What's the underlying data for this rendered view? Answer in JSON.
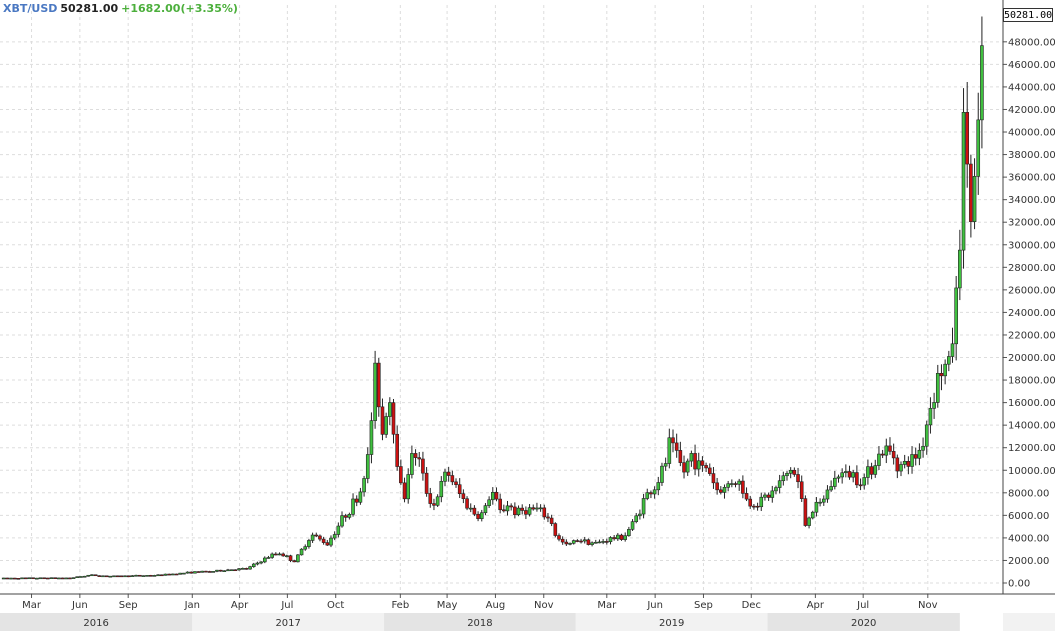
{
  "header": {
    "symbol": "XBT/USD",
    "price": "50281.00",
    "change": "+1682.00(+3.35%)"
  },
  "last_price_label": "50281.00",
  "colors": {
    "up": "#3fbf3f",
    "down": "#cc1111",
    "wick": "#222222",
    "grid": "#dddddd",
    "year_band_a": "#e4e4e4",
    "year_band_b": "#f2f2f2",
    "header_symbol": "#4a78c2",
    "header_change": "#4caf3c"
  },
  "chart_data": {
    "type": "candlestick",
    "title": "",
    "xlabel": "",
    "ylabel": "",
    "ylim": [
      0,
      51000
    ],
    "y_ticks": [
      "0.00",
      "2000.00",
      "4000.00",
      "6000.00",
      "8000.00",
      "10000.00",
      "12000.00",
      "14000.00",
      "16000.00",
      "18000.00",
      "20000.00",
      "22000.00",
      "24000.00",
      "26000.00",
      "28000.00",
      "30000.00",
      "32000.00",
      "34000.00",
      "36000.00",
      "38000.00",
      "40000.00",
      "42000.00",
      "44000.00",
      "46000.00",
      "48000.00"
    ],
    "x_range": [
      "2016-01-01",
      "2021-01-07"
    ],
    "month_ticks": [
      {
        "label": "Mar",
        "date": "2016-03-01"
      },
      {
        "label": "Jun",
        "date": "2016-06-01"
      },
      {
        "label": "Sep",
        "date": "2016-09-01"
      },
      {
        "label": "Jan",
        "date": "2017-01-01"
      },
      {
        "label": "Apr",
        "date": "2017-04-01"
      },
      {
        "label": "Jul",
        "date": "2017-07-01"
      },
      {
        "label": "Oct",
        "date": "2017-10-01"
      },
      {
        "label": "Feb",
        "date": "2018-02-01"
      },
      {
        "label": "May",
        "date": "2018-05-01"
      },
      {
        "label": "Aug",
        "date": "2018-08-01"
      },
      {
        "label": "Nov",
        "date": "2018-11-01"
      },
      {
        "label": "Mar",
        "date": "2019-03-01"
      },
      {
        "label": "Jun",
        "date": "2019-06-01"
      },
      {
        "label": "Sep",
        "date": "2019-09-01"
      },
      {
        "label": "Dec",
        "date": "2019-12-01"
      },
      {
        "label": "Apr",
        "date": "2020-04-01"
      },
      {
        "label": "Jul",
        "date": "2020-07-01"
      },
      {
        "label": "Nov",
        "date": "2020-11-01"
      }
    ],
    "years": [
      {
        "label": "2016",
        "start": "2016-01-01",
        "end": "2017-01-01"
      },
      {
        "label": "2017",
        "start": "2017-01-01",
        "end": "2018-01-01"
      },
      {
        "label": "2018",
        "start": "2018-01-01",
        "end": "2019-01-01"
      },
      {
        "label": "2019",
        "start": "2019-01-01",
        "end": "2020-01-01"
      },
      {
        "label": "2020",
        "start": "2020-01-01",
        "end": "2021-01-01"
      }
    ],
    "series": [
      {
        "type": "close_path",
        "points": [
          [
            "2016-01-01",
            430
          ],
          [
            "2016-05-15",
            450
          ],
          [
            "2016-06-20",
            700
          ],
          [
            "2016-08-01",
            600
          ],
          [
            "2016-11-01",
            700
          ],
          [
            "2017-01-01",
            950
          ],
          [
            "2017-02-15",
            1050
          ],
          [
            "2017-03-15",
            1200
          ],
          [
            "2017-04-15",
            1250
          ],
          [
            "2017-05-25",
            2300
          ],
          [
            "2017-06-15",
            2700
          ],
          [
            "2017-07-15",
            1900
          ],
          [
            "2017-08-15",
            4300
          ],
          [
            "2017-09-15",
            3500
          ],
          [
            "2017-10-15",
            5800
          ],
          [
            "2017-11-15",
            7800
          ],
          [
            "2017-12-01",
            11000
          ],
          [
            "2017-12-17",
            19300
          ],
          [
            "2017-12-28",
            13000
          ],
          [
            "2018-01-10",
            17000
          ],
          [
            "2018-01-25",
            11500
          ],
          [
            "2018-02-06",
            7000
          ],
          [
            "2018-02-20",
            11000
          ],
          [
            "2018-03-05",
            11500
          ],
          [
            "2018-03-20",
            8500
          ],
          [
            "2018-04-05",
            6800
          ],
          [
            "2018-04-25",
            9300
          ],
          [
            "2018-05-05",
            9700
          ],
          [
            "2018-05-20",
            8200
          ],
          [
            "2018-06-10",
            6800
          ],
          [
            "2018-06-28",
            5900
          ],
          [
            "2018-07-10",
            6300
          ],
          [
            "2018-07-25",
            8200
          ],
          [
            "2018-08-10",
            6300
          ],
          [
            "2018-08-25",
            7000
          ],
          [
            "2018-09-10",
            6200
          ],
          [
            "2018-09-25",
            6500
          ],
          [
            "2018-10-20",
            6500
          ],
          [
            "2018-11-15",
            5500
          ],
          [
            "2018-11-25",
            4000
          ],
          [
            "2018-12-15",
            3300
          ],
          [
            "2019-01-05",
            3900
          ],
          [
            "2019-02-08",
            3500
          ],
          [
            "2019-03-05",
            3900
          ],
          [
            "2019-04-02",
            4100
          ],
          [
            "2019-04-20",
            5300
          ],
          [
            "2019-05-15",
            7800
          ],
          [
            "2019-06-01",
            8500
          ],
          [
            "2019-06-20",
            10500
          ],
          [
            "2019-06-28",
            12300
          ],
          [
            "2019-07-10",
            11500
          ],
          [
            "2019-07-25",
            9800
          ],
          [
            "2019-08-10",
            11500
          ],
          [
            "2019-08-25",
            10200
          ],
          [
            "2019-09-10",
            10300
          ],
          [
            "2019-09-25",
            8300
          ],
          [
            "2019-10-10",
            8300
          ],
          [
            "2019-10-27",
            9200
          ],
          [
            "2019-11-10",
            8800
          ],
          [
            "2019-11-25",
            7000
          ],
          [
            "2019-12-15",
            7200
          ],
          [
            "2020-01-10",
            8000
          ],
          [
            "2020-02-01",
            9300
          ],
          [
            "2020-02-15",
            10200
          ],
          [
            "2020-03-01",
            8700
          ],
          [
            "2020-03-13",
            5200
          ],
          [
            "2020-03-25",
            6500
          ],
          [
            "2020-04-10",
            6900
          ],
          [
            "2020-04-30",
            8700
          ],
          [
            "2020-05-15",
            9600
          ],
          [
            "2020-06-10",
            9700
          ],
          [
            "2020-07-01",
            9100
          ],
          [
            "2020-07-25",
            11000
          ],
          [
            "2020-08-10",
            11800
          ],
          [
            "2020-08-25",
            11500
          ],
          [
            "2020-09-10",
            10300
          ],
          [
            "2020-09-30",
            10800
          ],
          [
            "2020-10-20",
            12000
          ],
          [
            "2020-11-05",
            15500
          ],
          [
            "2020-11-20",
            18300
          ],
          [
            "2020-12-01",
            19000
          ],
          [
            "2020-12-15",
            19400
          ],
          [
            "2020-12-20",
            23500
          ],
          [
            "2020-12-28",
            26500
          ],
          [
            "2021-01-02",
            32000
          ],
          [
            "2021-01-08",
            40000
          ],
          [
            "2021-01-11",
            35000
          ],
          [
            "2021-01-15",
            38000
          ],
          [
            "2021-01-22",
            32000
          ],
          [
            "2021-02-05",
            38500
          ],
          [
            "2021-02-10",
            46500
          ],
          [
            "2021-02-18",
            50281
          ]
        ]
      }
    ]
  }
}
